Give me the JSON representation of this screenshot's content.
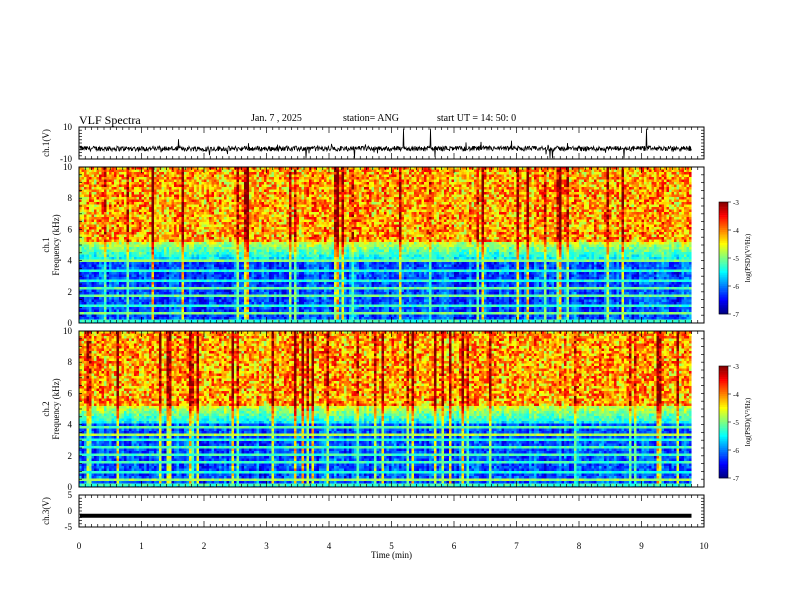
{
  "header": {
    "title": "VLF Spectra",
    "date": "Jan. 7 , 2025",
    "station": "station= ANG",
    "start": "start UT =   14: 50: 0"
  },
  "chart_data": [
    {
      "type": "line",
      "ylabel": "ch.1(V)",
      "xlim": [
        0,
        10
      ],
      "ylim": [
        -10,
        10
      ],
      "yticks": [
        "10",
        "-10"
      ],
      "xticks": [
        "0",
        "1",
        "2",
        "3",
        "4",
        "5",
        "6",
        "7",
        "8",
        "9",
        "10"
      ],
      "data_end_min": 9.8,
      "baseline": -3.5
    },
    {
      "type": "heatmap",
      "ylabel": "ch.1 Frequency (kHz)",
      "xlim": [
        0,
        10
      ],
      "ylim": [
        0,
        10
      ],
      "yticks": [
        "0",
        "2",
        "4",
        "6",
        "8",
        "10"
      ],
      "colorbar": {
        "label": "log(PSD)(V²/Hz)",
        "ticks": [
          "-3",
          "-4",
          "-5",
          "-6",
          "-7"
        ],
        "range": [
          -7,
          -3
        ]
      },
      "data_end_min": 9.8
    },
    {
      "type": "heatmap",
      "ylabel": "ch.2 Frequency (kHz)",
      "xlim": [
        0,
        10
      ],
      "ylim": [
        0,
        10
      ],
      "yticks": [
        "0",
        "2",
        "4",
        "6",
        "8",
        "10"
      ],
      "colorbar": {
        "label": "log(PSD)(V²/Hz)",
        "ticks": [
          "-3",
          "-4",
          "-5",
          "-6",
          "-7"
        ],
        "range": [
          -7,
          -3
        ]
      },
      "data_end_min": 9.8
    },
    {
      "type": "line",
      "ylabel": "ch.3(V)",
      "xlabel": "Time (min)",
      "xlim": [
        0,
        10
      ],
      "ylim": [
        -5,
        5
      ],
      "yticks": [
        "5",
        "0",
        "-5"
      ],
      "xticks": [
        "0",
        "1",
        "2",
        "3",
        "4",
        "5",
        "6",
        "7",
        "8",
        "9",
        "10"
      ],
      "data_end_min": 9.8,
      "value": -1.5
    }
  ]
}
